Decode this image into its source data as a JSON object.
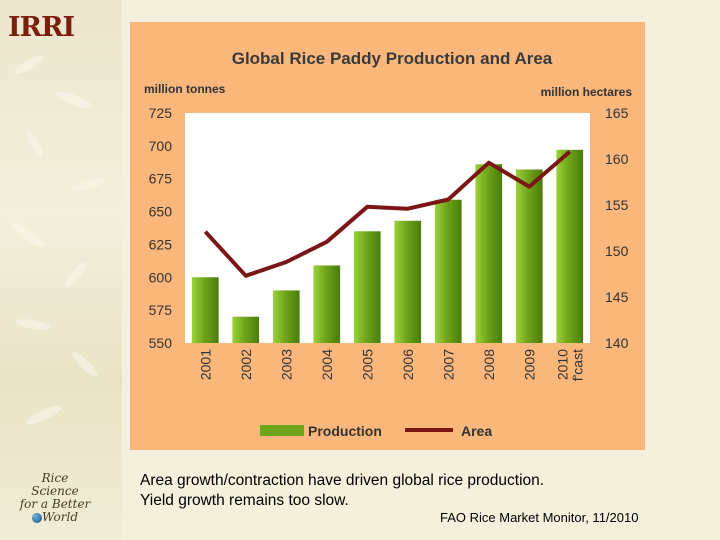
{
  "logo": {
    "text": "IRRI"
  },
  "tagline": {
    "lines": [
      "Rice",
      "Science",
      "for a Better",
      "World"
    ]
  },
  "chart_data": {
    "type": "bar",
    "title": "Global Rice Paddy Production and Area",
    "categories": [
      "2001",
      "2002",
      "2003",
      "2004",
      "2005",
      "2006",
      "2007",
      "2008",
      "2009",
      "2010 f'cast"
    ],
    "category_lines": [
      [
        "2001"
      ],
      [
        "2002"
      ],
      [
        "2003"
      ],
      [
        "2004"
      ],
      [
        "2005"
      ],
      [
        "2006"
      ],
      [
        "2007"
      ],
      [
        "2008"
      ],
      [
        "2009"
      ],
      [
        "2010",
        "f'cast"
      ]
    ],
    "series": [
      {
        "name": "Production",
        "type": "bar",
        "axis": "left",
        "color": "#6fa51a",
        "values": [
          600,
          570,
          590,
          609,
          635,
          643,
          659,
          686,
          682,
          697
        ]
      },
      {
        "name": "Area",
        "type": "line",
        "axis": "right",
        "color": "#7a1616",
        "values": [
          152.1,
          147.3,
          148.8,
          151.0,
          154.8,
          154.6,
          155.6,
          159.6,
          157.0,
          160.8
        ]
      }
    ],
    "ylabel_left": "million tonnes",
    "ylabel_right": "million hectares",
    "ylim_left": [
      550,
      725
    ],
    "ylim_right": [
      140,
      165
    ],
    "yticks_left": [
      550,
      575,
      600,
      625,
      650,
      675,
      700,
      725
    ],
    "yticks_right": [
      140,
      145,
      150,
      155,
      160,
      165
    ],
    "legend_position": "bottom",
    "grid": false,
    "background": "#f9b77c"
  },
  "caption": {
    "line1": "Area growth/contraction have driven global rice production.",
    "line2": "Yield growth remains too slow."
  },
  "source": "FAO Rice Market Monitor, 11/2010"
}
